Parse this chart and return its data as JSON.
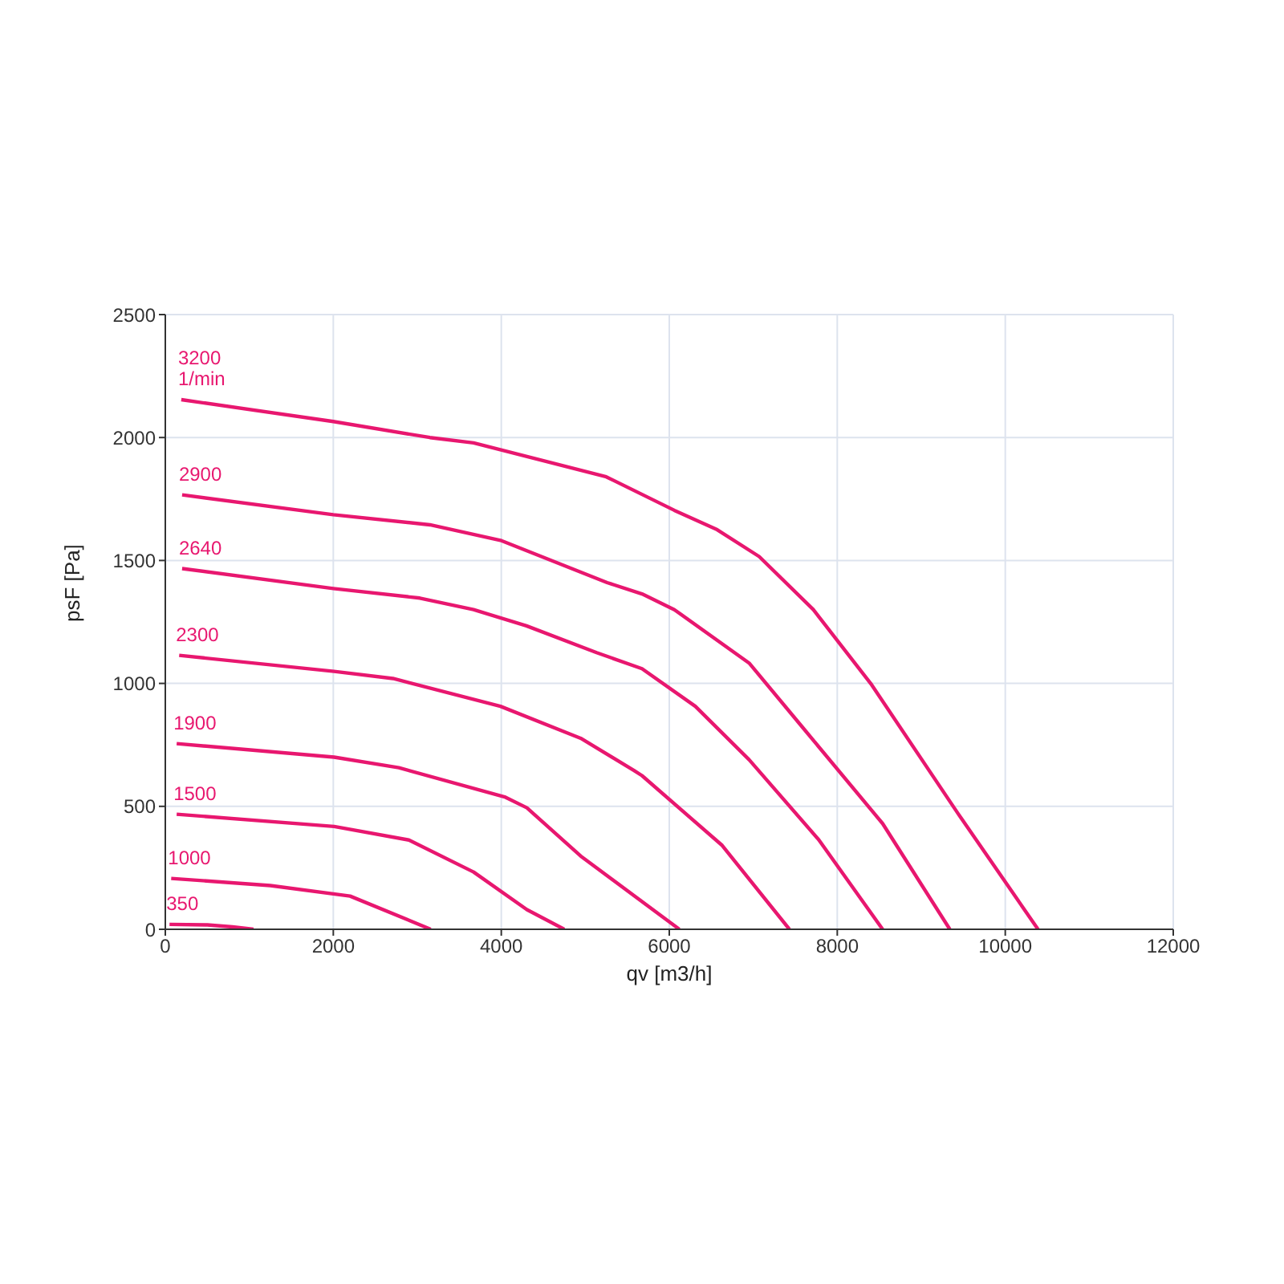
{
  "chart_data": {
    "type": "line",
    "xlabel": "qv [m3/h]",
    "ylabel": "psF [Pa]",
    "xlim": [
      0,
      12000
    ],
    "ylim": [
      0,
      2500
    ],
    "xticks": [
      0,
      2000,
      4000,
      6000,
      8000,
      10000,
      12000
    ],
    "yticks": [
      0,
      500,
      1000,
      1500,
      2000,
      2500
    ],
    "grid": true,
    "legend": false,
    "marker": "none",
    "line_style": "solid",
    "annotations": [
      "1/min"
    ],
    "series": [
      {
        "name": "3200",
        "color": "#e8176f",
        "x": [
          190,
          2000,
          3150,
          3670,
          5250,
          6060,
          6570,
          7070,
          7715,
          8410,
          9435,
          10390
        ],
        "values": [
          2154,
          2065,
          2000,
          1978,
          1840,
          1704,
          1625,
          1516,
          1300,
          994,
          472,
          0
        ]
      },
      {
        "name": "2900",
        "color": "#e8176f",
        "x": [
          200,
          2000,
          3150,
          3990,
          5260,
          5675,
          6060,
          6950,
          7590,
          8540,
          9340
        ],
        "values": [
          1767,
          1686,
          1645,
          1582,
          1410,
          1364,
          1300,
          1083,
          820,
          430,
          0
        ]
      },
      {
        "name": "2640",
        "color": "#e8176f",
        "x": [
          200,
          2000,
          3030,
          3670,
          4300,
          5135,
          5675,
          6310,
          6950,
          7780,
          8540
        ],
        "values": [
          1467,
          1386,
          1347,
          1300,
          1234,
          1125,
          1060,
          907,
          690,
          364,
          0
        ]
      },
      {
        "name": "2300",
        "color": "#e8176f",
        "x": [
          165,
          2010,
          2710,
          3990,
          4945,
          5580,
          5675,
          6630,
          7430
        ],
        "values": [
          1114,
          1049,
          1020,
          907,
          777,
          646,
          625,
          341,
          0
        ]
      },
      {
        "name": "1900",
        "color": "#e8176f",
        "x": [
          135,
          2010,
          2780,
          4050,
          4305,
          4945,
          6120
        ],
        "values": [
          755,
          700,
          657,
          537,
          494,
          298,
          0
        ]
      },
      {
        "name": "1500",
        "color": "#e8176f",
        "x": [
          135,
          2010,
          2900,
          3670,
          4305,
          4750
        ],
        "values": [
          468,
          418,
          363,
          233,
          80,
          0
        ]
      },
      {
        "name": "1000",
        "color": "#e8176f",
        "x": [
          70,
          1250,
          2200,
          3160
        ],
        "values": [
          207,
          178,
          135,
          0
        ]
      },
      {
        "name": "350",
        "color": "#e8176f",
        "x": [
          50,
          500,
          800,
          1050
        ],
        "values": [
          20,
          18,
          10,
          0
        ]
      }
    ]
  }
}
